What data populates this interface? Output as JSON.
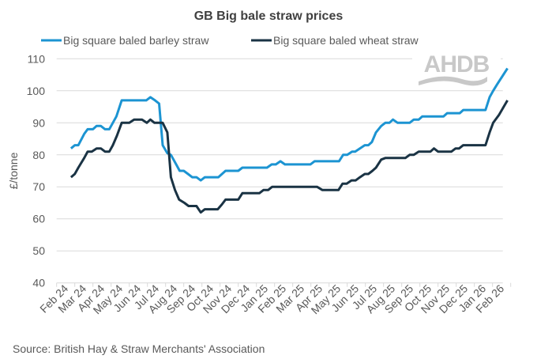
{
  "chart_data": {
    "type": "line",
    "title": "GB Big bale straw prices",
    "ylabel": "£/tonne",
    "xlabel": "",
    "ylim": [
      40,
      110
    ],
    "yticks": [
      40,
      50,
      60,
      70,
      80,
      90,
      100,
      110
    ],
    "xlim": [
      "2024-02-01",
      "2026-03-01"
    ],
    "xtick_labels": [
      "Feb 24",
      "Mar 24",
      "Apr 24",
      "May 24",
      "Jun 24",
      "Jul 24",
      "Aug 24",
      "Sep 24",
      "Oct 24",
      "Nov 24",
      "Dec 24",
      "Jan 25",
      "Feb 25",
      "Mar 25",
      "Apr 25",
      "May 25",
      "Jun 25",
      "Jul 25",
      "Aug 25",
      "Sep 25",
      "Oct 25",
      "Nov 25",
      "Dec 25",
      "Jan 26",
      "Feb 26"
    ],
    "grid": "horizontal",
    "legend_position": "top",
    "source": "Source: British Hay & Straw Merchants' Association",
    "logo_text": "AHDB",
    "series": [
      {
        "name": "Big square baled barley straw",
        "color": "#1c94d2",
        "points": [
          [
            "2024-02-24",
            82
          ],
          [
            "2024-03-01",
            83
          ],
          [
            "2024-03-07",
            83
          ],
          [
            "2024-03-17",
            86.5
          ],
          [
            "2024-03-23",
            88
          ],
          [
            "2024-04-01",
            88
          ],
          [
            "2024-04-07",
            89
          ],
          [
            "2024-04-14",
            89
          ],
          [
            "2024-04-21",
            88
          ],
          [
            "2024-04-28",
            88
          ],
          [
            "2024-05-04",
            90
          ],
          [
            "2024-05-10",
            92
          ],
          [
            "2024-05-19",
            97
          ],
          [
            "2024-06-29",
            97
          ],
          [
            "2024-07-06",
            98
          ],
          [
            "2024-07-14",
            97
          ],
          [
            "2024-07-21",
            96
          ],
          [
            "2024-07-27",
            83
          ],
          [
            "2024-08-04",
            80.5
          ],
          [
            "2024-08-10",
            80
          ],
          [
            "2024-08-19",
            77
          ],
          [
            "2024-08-25",
            75
          ],
          [
            "2024-09-01",
            75
          ],
          [
            "2024-09-08",
            74
          ],
          [
            "2024-09-15",
            73
          ],
          [
            "2024-09-22",
            73
          ],
          [
            "2024-09-29",
            72
          ],
          [
            "2024-10-06",
            73
          ],
          [
            "2024-10-29",
            73
          ],
          [
            "2024-11-10",
            75
          ],
          [
            "2024-12-01",
            75
          ],
          [
            "2024-12-08",
            76
          ],
          [
            "2025-01-19",
            76
          ],
          [
            "2025-01-27",
            77
          ],
          [
            "2025-02-03",
            77
          ],
          [
            "2025-02-10",
            78
          ],
          [
            "2025-02-17",
            77
          ],
          [
            "2025-03-31",
            77
          ],
          [
            "2025-04-07",
            78
          ],
          [
            "2025-05-18",
            78
          ],
          [
            "2025-05-25",
            80
          ],
          [
            "2025-06-01",
            80
          ],
          [
            "2025-06-09",
            81
          ],
          [
            "2025-06-14",
            81
          ],
          [
            "2025-06-30",
            83
          ],
          [
            "2025-07-06",
            83
          ],
          [
            "2025-07-12",
            84
          ],
          [
            "2025-07-19",
            87
          ],
          [
            "2025-07-28",
            89
          ],
          [
            "2025-08-04",
            90
          ],
          [
            "2025-08-11",
            90
          ],
          [
            "2025-08-17",
            91
          ],
          [
            "2025-08-25",
            90
          ],
          [
            "2025-09-14",
            90
          ],
          [
            "2025-09-21",
            91
          ],
          [
            "2025-09-29",
            91
          ],
          [
            "2025-10-05",
            92
          ],
          [
            "2025-11-10",
            92
          ],
          [
            "2025-11-16",
            93
          ],
          [
            "2025-12-07",
            93
          ],
          [
            "2025-12-13",
            94
          ],
          [
            "2026-01-20",
            94
          ],
          [
            "2026-01-27",
            98
          ],
          [
            "2026-02-02",
            100
          ],
          [
            "2026-02-08",
            102
          ],
          [
            "2026-02-24",
            107
          ]
        ]
      },
      {
        "name": "Big square baled wheat straw",
        "color": "#1a3344",
        "points": [
          [
            "2024-02-24",
            73
          ],
          [
            "2024-03-01",
            74
          ],
          [
            "2024-03-07",
            76
          ],
          [
            "2024-03-17",
            79
          ],
          [
            "2024-03-23",
            81
          ],
          [
            "2024-03-30",
            81
          ],
          [
            "2024-04-07",
            82
          ],
          [
            "2024-04-14",
            82
          ],
          [
            "2024-04-21",
            81
          ],
          [
            "2024-04-28",
            81
          ],
          [
            "2024-05-04",
            83
          ],
          [
            "2024-05-11",
            86
          ],
          [
            "2024-05-19",
            90
          ],
          [
            "2024-06-01",
            90
          ],
          [
            "2024-06-09",
            91
          ],
          [
            "2024-06-22",
            91
          ],
          [
            "2024-06-30",
            90
          ],
          [
            "2024-07-06",
            91
          ],
          [
            "2024-07-13",
            90
          ],
          [
            "2024-07-27",
            90
          ],
          [
            "2024-08-04",
            87
          ],
          [
            "2024-08-10",
            73
          ],
          [
            "2024-08-17",
            69
          ],
          [
            "2024-08-24",
            66
          ],
          [
            "2024-09-02",
            65
          ],
          [
            "2024-09-09",
            64
          ],
          [
            "2024-09-22",
            64
          ],
          [
            "2024-09-29",
            62
          ],
          [
            "2024-10-06",
            63
          ],
          [
            "2024-10-28",
            63
          ],
          [
            "2024-11-04",
            64.5
          ],
          [
            "2024-11-10",
            66
          ],
          [
            "2024-12-01",
            66
          ],
          [
            "2024-12-08",
            68
          ],
          [
            "2025-01-06",
            68
          ],
          [
            "2025-01-13",
            69
          ],
          [
            "2025-01-21",
            69
          ],
          [
            "2025-01-28",
            70
          ],
          [
            "2025-04-11",
            70
          ],
          [
            "2025-04-20",
            69
          ],
          [
            "2025-05-17",
            69
          ],
          [
            "2025-05-24",
            71
          ],
          [
            "2025-05-31",
            71
          ],
          [
            "2025-06-08",
            72
          ],
          [
            "2025-06-15",
            72
          ],
          [
            "2025-06-22",
            73
          ],
          [
            "2025-06-30",
            74
          ],
          [
            "2025-07-06",
            74
          ],
          [
            "2025-07-13",
            75
          ],
          [
            "2025-07-19",
            76
          ],
          [
            "2025-07-28",
            78.5
          ],
          [
            "2025-08-04",
            79
          ],
          [
            "2025-09-07",
            79
          ],
          [
            "2025-09-14",
            80
          ],
          [
            "2025-09-21",
            80
          ],
          [
            "2025-09-29",
            81
          ],
          [
            "2025-10-19",
            81
          ],
          [
            "2025-10-25",
            82
          ],
          [
            "2025-11-01",
            81
          ],
          [
            "2025-11-23",
            81
          ],
          [
            "2025-11-30",
            82
          ],
          [
            "2025-12-06",
            82
          ],
          [
            "2025-12-13",
            83
          ],
          [
            "2026-01-20",
            83
          ],
          [
            "2026-01-27",
            87
          ],
          [
            "2026-02-02",
            90
          ],
          [
            "2026-02-11",
            92.5
          ],
          [
            "2026-02-24",
            97
          ]
        ]
      }
    ]
  }
}
